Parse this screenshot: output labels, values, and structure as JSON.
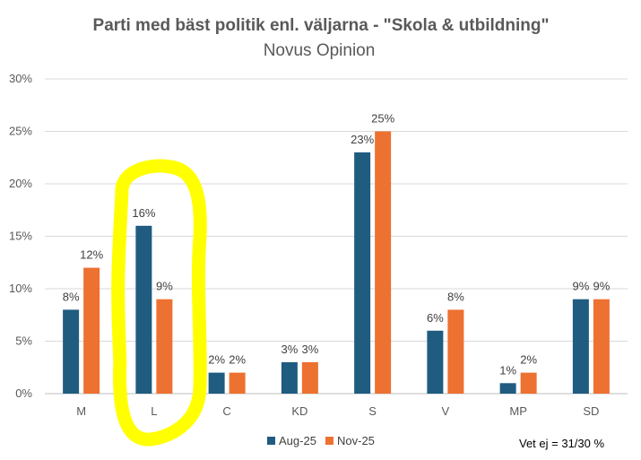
{
  "colors": {
    "series1": "#1f5c80",
    "series2": "#ed7130",
    "highlight": "#ffff00"
  },
  "chart_data": {
    "type": "bar",
    "title": "Parti med bäst politik enl. väljarna - \"Skola & utbildning\"",
    "subtitle": "Novus Opinion",
    "categories": [
      "M",
      "L",
      "C",
      "KD",
      "S",
      "V",
      "MP",
      "SD"
    ],
    "series": [
      {
        "name": "Aug-25",
        "values": [
          8,
          16,
          2,
          3,
          23,
          6,
          1,
          9
        ],
        "labels": [
          "8%",
          "16%",
          "2%",
          "3%",
          "23%",
          "6%",
          "1%",
          "9%"
        ]
      },
      {
        "name": "Nov-25",
        "values": [
          12,
          9,
          2,
          3,
          25,
          8,
          2,
          9
        ],
        "labels": [
          "12%",
          "9%",
          "2%",
          "3%",
          "25%",
          "8%",
          "2%",
          "9%"
        ]
      }
    ],
    "ylim": [
      0,
      30
    ],
    "yticks": [
      0,
      5,
      10,
      15,
      20,
      25,
      30
    ],
    "ytick_labels": [
      "0%",
      "5%",
      "10%",
      "15%",
      "20%",
      "25%",
      "30%"
    ],
    "xlabel": "",
    "ylabel": "",
    "grid": true,
    "legend_position": "bottom",
    "highlighted_category": "L",
    "note": "Vet ej = 31/30 %"
  }
}
